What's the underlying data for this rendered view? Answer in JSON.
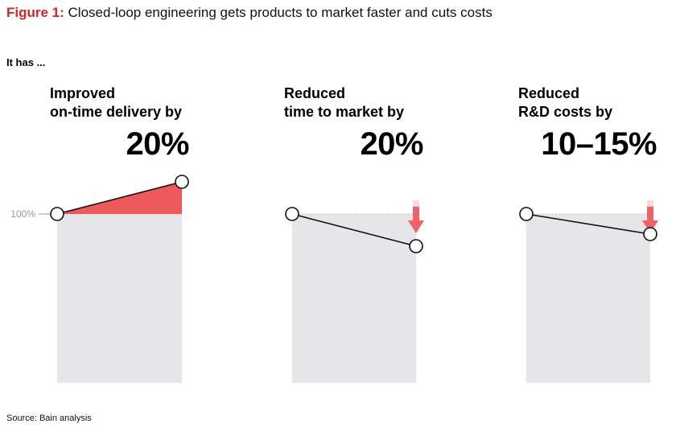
{
  "figure": {
    "label": "Figure 1:",
    "title": "Closed-loop engineering gets products to market faster and cuts costs"
  },
  "intro": "It has ...",
  "source": "Source: Bain analysis",
  "colors": {
    "accent": "#f0595c",
    "arrow": "#ef6367",
    "panel_bg": "#e6e6e8",
    "line": "#111111",
    "baseline": "#bdbdbd"
  },
  "chart_data": {
    "type": "line",
    "y_reference": {
      "value": 100,
      "label": "100%"
    },
    "panels": [
      {
        "heading_line1": "Improved",
        "heading_line2": "on-time delivery by",
        "headline_value": "20%",
        "direction": "up",
        "start": 100,
        "end": 120,
        "fill_change": true
      },
      {
        "heading_line1": "Reduced",
        "heading_line2": "time to market by",
        "headline_value": "20%",
        "direction": "down",
        "start": 100,
        "end": 80,
        "fill_change": false
      },
      {
        "heading_line1": "Reduced",
        "heading_line2": "R&D costs by",
        "headline_value": "10–15%",
        "direction": "down",
        "start": 100,
        "end": 87.5,
        "fill_change": false
      }
    ]
  }
}
